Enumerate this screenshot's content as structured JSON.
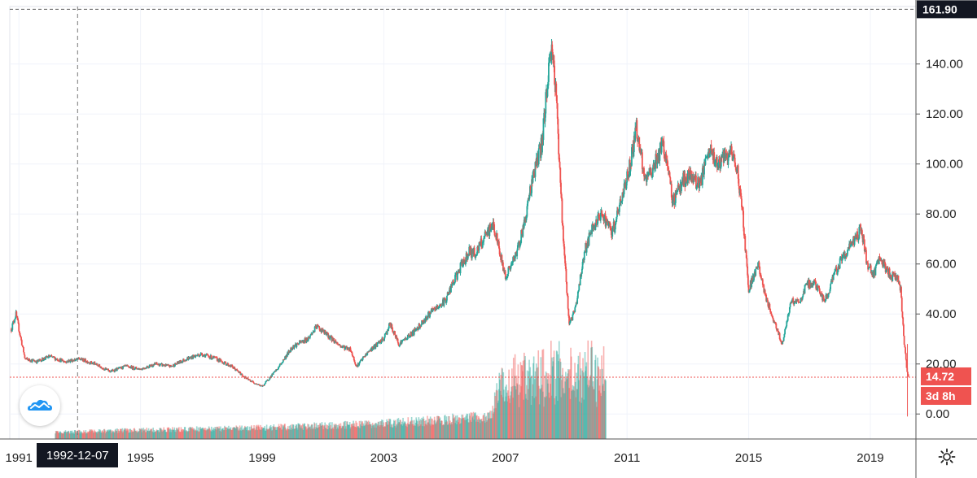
{
  "chart_data": {
    "type": "candlestick",
    "x_ticks": [
      "1991",
      "1995",
      "1999",
      "2003",
      "2007",
      "2011",
      "2015",
      "2019"
    ],
    "y_ticks": [
      "0.00",
      "20.00",
      "40.00",
      "60.00",
      "80.00",
      "100.00",
      "120.00",
      "140.00"
    ],
    "ylim": [
      -10,
      163
    ],
    "xlim": [
      1990.7,
      2020.5
    ],
    "price_path": [
      [
        1990.75,
        34
      ],
      [
        1990.9,
        40
      ],
      [
        1991.2,
        22
      ],
      [
        1991.6,
        21
      ],
      [
        1992.0,
        23
      ],
      [
        1992.5,
        21
      ],
      [
        1993.0,
        22
      ],
      [
        1993.5,
        20
      ],
      [
        1994.0,
        17
      ],
      [
        1994.5,
        19
      ],
      [
        1995.0,
        18
      ],
      [
        1995.5,
        20
      ],
      [
        1996.0,
        19
      ],
      [
        1996.5,
        22
      ],
      [
        1997.0,
        24
      ],
      [
        1997.5,
        22
      ],
      [
        1998.0,
        19
      ],
      [
        1998.5,
        14
      ],
      [
        1999.0,
        11
      ],
      [
        1999.5,
        18
      ],
      [
        2000.0,
        27
      ],
      [
        2000.5,
        30
      ],
      [
        2000.8,
        35
      ],
      [
        2001.2,
        31
      ],
      [
        2001.6,
        27
      ],
      [
        2001.9,
        26
      ],
      [
        2002.1,
        19
      ],
      [
        2002.5,
        25
      ],
      [
        2003.0,
        30
      ],
      [
        2003.2,
        36
      ],
      [
        2003.5,
        28
      ],
      [
        2004.0,
        33
      ],
      [
        2004.5,
        40
      ],
      [
        2005.0,
        45
      ],
      [
        2005.5,
        58
      ],
      [
        2005.8,
        65
      ],
      [
        2006.0,
        64
      ],
      [
        2006.4,
        72
      ],
      [
        2006.6,
        76
      ],
      [
        2006.9,
        60
      ],
      [
        2007.0,
        55
      ],
      [
        2007.3,
        62
      ],
      [
        2007.6,
        75
      ],
      [
        2007.9,
        95
      ],
      [
        2008.2,
        108
      ],
      [
        2008.45,
        142
      ],
      [
        2008.55,
        147
      ],
      [
        2008.7,
        120
      ],
      [
        2008.9,
        70
      ],
      [
        2009.1,
        36
      ],
      [
        2009.3,
        42
      ],
      [
        2009.6,
        65
      ],
      [
        2009.9,
        75
      ],
      [
        2010.2,
        80
      ],
      [
        2010.5,
        72
      ],
      [
        2010.8,
        85
      ],
      [
        2011.1,
        100
      ],
      [
        2011.3,
        115
      ],
      [
        2011.6,
        92
      ],
      [
        2011.9,
        100
      ],
      [
        2012.2,
        108
      ],
      [
        2012.5,
        85
      ],
      [
        2012.8,
        93
      ],
      [
        2013.1,
        95
      ],
      [
        2013.4,
        92
      ],
      [
        2013.7,
        105
      ],
      [
        2014.0,
        100
      ],
      [
        2014.4,
        104
      ],
      [
        2014.6,
        100
      ],
      [
        2014.8,
        80
      ],
      [
        2015.0,
        50
      ],
      [
        2015.3,
        60
      ],
      [
        2015.6,
        45
      ],
      [
        2015.9,
        35
      ],
      [
        2016.1,
        28
      ],
      [
        2016.4,
        45
      ],
      [
        2016.7,
        45
      ],
      [
        2016.9,
        52
      ],
      [
        2017.2,
        52
      ],
      [
        2017.5,
        45
      ],
      [
        2017.8,
        55
      ],
      [
        2018.1,
        63
      ],
      [
        2018.4,
        68
      ],
      [
        2018.7,
        74
      ],
      [
        2018.9,
        60
      ],
      [
        2019.1,
        55
      ],
      [
        2019.3,
        63
      ],
      [
        2019.5,
        58
      ],
      [
        2019.7,
        55
      ],
      [
        2019.9,
        55
      ],
      [
        2020.0,
        50
      ],
      [
        2020.1,
        30
      ],
      [
        2020.2,
        18
      ],
      [
        2020.25,
        14.72
      ]
    ],
    "volume_envelope": [
      [
        1992.2,
        3
      ],
      [
        1995.0,
        4
      ],
      [
        1999.0,
        5
      ],
      [
        2003.0,
        7
      ],
      [
        2006.5,
        10
      ],
      [
        2006.9,
        28
      ],
      [
        2008.0,
        32
      ],
      [
        2009.0,
        34
      ],
      [
        2010.0,
        33
      ],
      [
        2010.3,
        32
      ]
    ],
    "current_price": "14.72",
    "current_price_value": 14.72,
    "high_label": "161.90",
    "high_value": 161.9,
    "countdown": "3d 8h",
    "crosshair_date": "1992-12-07",
    "crosshair_x": 1992.93,
    "colors": {
      "up": "#26a69a",
      "down": "#ef5350",
      "grid": "#f0f3fa",
      "axis_label_bg": "#131722",
      "price_label_bg": "#ef5350"
    }
  },
  "icons": {
    "logo": "tradingview-cloud-icon",
    "settings": "gear-icon"
  }
}
